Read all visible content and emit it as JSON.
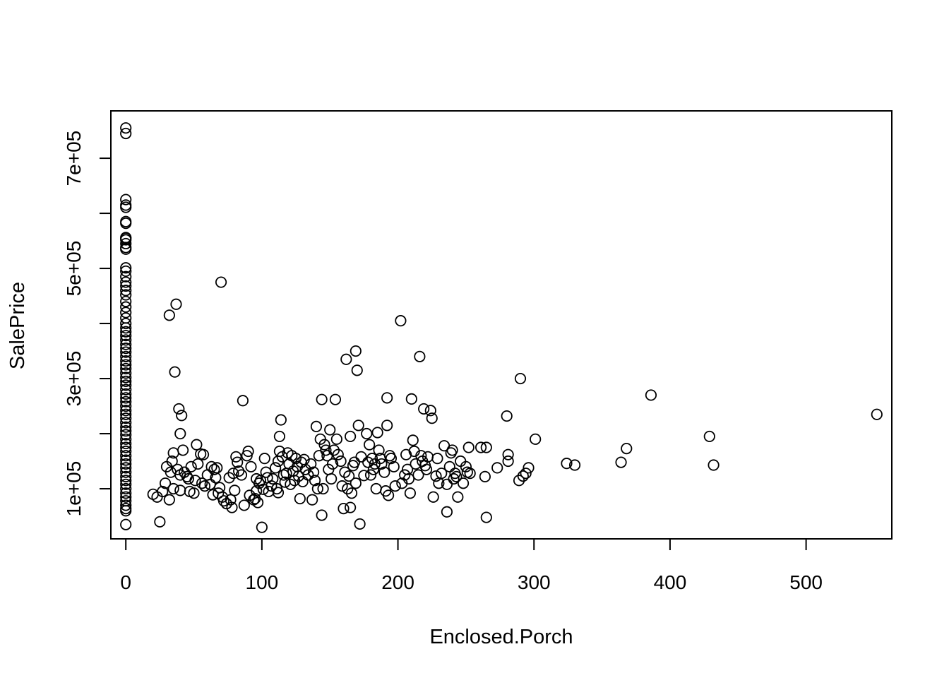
{
  "chart_data": {
    "type": "scatter",
    "title": "",
    "xlabel": "Enclosed.Porch",
    "ylabel": "SalePrice",
    "xlim": [
      -11,
      563
    ],
    "ylim": [
      9000,
      786000
    ],
    "x_ticks": [
      0,
      100,
      200,
      300,
      400,
      500
    ],
    "x_tick_labels": [
      "0",
      "100",
      "200",
      "300",
      "400",
      "500"
    ],
    "y_ticks": [
      100000,
      200000,
      300000,
      400000,
      500000,
      600000,
      700000
    ],
    "y_tick_labels": [
      "1e+05",
      "",
      "3e+05",
      "",
      "5e+05",
      "",
      "7e+05"
    ],
    "grid": false,
    "marker": "open-circle",
    "points": [
      [
        0,
        755000
      ],
      [
        0,
        745000
      ],
      [
        0,
        625000
      ],
      [
        0,
        615000
      ],
      [
        0,
        611000
      ],
      [
        0,
        585000
      ],
      [
        0,
        582000
      ],
      [
        0,
        556000
      ],
      [
        0,
        555000
      ],
      [
        0,
        552000
      ],
      [
        0,
        545000
      ],
      [
        0,
        538000
      ],
      [
        0,
        535000
      ],
      [
        0,
        501000
      ],
      [
        0,
        495000
      ],
      [
        0,
        485000
      ],
      [
        0,
        475000
      ],
      [
        0,
        468000
      ],
      [
        0,
        460000
      ],
      [
        0,
        452000
      ],
      [
        0,
        440000
      ],
      [
        0,
        430000
      ],
      [
        0,
        420000
      ],
      [
        0,
        410000
      ],
      [
        0,
        400000
      ],
      [
        0,
        392000
      ],
      [
        0,
        385000
      ],
      [
        0,
        378000
      ],
      [
        0,
        370000
      ],
      [
        0,
        362000
      ],
      [
        0,
        355000
      ],
      [
        0,
        348000
      ],
      [
        0,
        340000
      ],
      [
        0,
        332000
      ],
      [
        0,
        325000
      ],
      [
        0,
        318000
      ],
      [
        0,
        310000
      ],
      [
        0,
        302000
      ],
      [
        0,
        295000
      ],
      [
        0,
        288000
      ],
      [
        0,
        280000
      ],
      [
        0,
        272000
      ],
      [
        0,
        265000
      ],
      [
        0,
        258000
      ],
      [
        0,
        250000
      ],
      [
        0,
        242000
      ],
      [
        0,
        235000
      ],
      [
        0,
        228000
      ],
      [
        0,
        220000
      ],
      [
        0,
        212000
      ],
      [
        0,
        205000
      ],
      [
        0,
        198000
      ],
      [
        0,
        190000
      ],
      [
        0,
        182000
      ],
      [
        0,
        175000
      ],
      [
        0,
        168000
      ],
      [
        0,
        160000
      ],
      [
        0,
        152000
      ],
      [
        0,
        145000
      ],
      [
        0,
        138000
      ],
      [
        0,
        130000
      ],
      [
        0,
        122000
      ],
      [
        0,
        115000
      ],
      [
        0,
        108000
      ],
      [
        0,
        100000
      ],
      [
        0,
        92000
      ],
      [
        0,
        85000
      ],
      [
        0,
        78000
      ],
      [
        0,
        70000
      ],
      [
        0,
        64000
      ],
      [
        0,
        60000
      ],
      [
        0,
        35000
      ],
      [
        20,
        90000
      ],
      [
        23,
        85000
      ],
      [
        25,
        40000
      ],
      [
        27,
        95000
      ],
      [
        29,
        110000
      ],
      [
        30,
        140000
      ],
      [
        32,
        80000
      ],
      [
        32,
        415000
      ],
      [
        33,
        130000
      ],
      [
        34,
        150000
      ],
      [
        35,
        165000
      ],
      [
        35,
        100000
      ],
      [
        36,
        312000
      ],
      [
        37,
        435000
      ],
      [
        38,
        135000
      ],
      [
        39,
        245000
      ],
      [
        40,
        200000
      ],
      [
        40,
        125000
      ],
      [
        40,
        97000
      ],
      [
        41,
        233000
      ],
      [
        42,
        170000
      ],
      [
        43,
        130000
      ],
      [
        45,
        122000
      ],
      [
        46,
        118000
      ],
      [
        47,
        95000
      ],
      [
        48,
        140000
      ],
      [
        50,
        92000
      ],
      [
        51,
        115000
      ],
      [
        52,
        180000
      ],
      [
        53,
        145000
      ],
      [
        55,
        163000
      ],
      [
        56,
        110000
      ],
      [
        57,
        162000
      ],
      [
        58,
        105000
      ],
      [
        60,
        125000
      ],
      [
        62,
        108000
      ],
      [
        63,
        140000
      ],
      [
        64,
        89000
      ],
      [
        65,
        135000
      ],
      [
        66,
        120000
      ],
      [
        67,
        138000
      ],
      [
        68,
        92000
      ],
      [
        69,
        102000
      ],
      [
        70,
        475000
      ],
      [
        71,
        85000
      ],
      [
        72,
        78000
      ],
      [
        74,
        73000
      ],
      [
        76,
        120000
      ],
      [
        77,
        80000
      ],
      [
        78,
        66000
      ],
      [
        79,
        128000
      ],
      [
        80,
        97000
      ],
      [
        81,
        158000
      ],
      [
        82,
        148000
      ],
      [
        83,
        132000
      ],
      [
        85,
        125000
      ],
      [
        86,
        260000
      ],
      [
        87,
        70000
      ],
      [
        89,
        160000
      ],
      [
        90,
        168000
      ],
      [
        91,
        88000
      ],
      [
        92,
        140000
      ],
      [
        94,
        80000
      ],
      [
        95,
        82000
      ],
      [
        96,
        96000
      ],
      [
        96,
        118000
      ],
      [
        97,
        75000
      ],
      [
        98,
        110000
      ],
      [
        99,
        115000
      ],
      [
        100,
        30000
      ],
      [
        101,
        99000
      ],
      [
        102,
        155000
      ],
      [
        103,
        130000
      ],
      [
        104,
        120000
      ],
      [
        105,
        95000
      ],
      [
        107,
        105000
      ],
      [
        108,
        118000
      ],
      [
        110,
        138000
      ],
      [
        111,
        100000
      ],
      [
        112,
        93000
      ],
      [
        112,
        150000
      ],
      [
        113,
        168000
      ],
      [
        113,
        195000
      ],
      [
        114,
        225000
      ],
      [
        115,
        158000
      ],
      [
        116,
        125000
      ],
      [
        117,
        112000
      ],
      [
        118,
        128000
      ],
      [
        119,
        165000
      ],
      [
        120,
        145000
      ],
      [
        121,
        108000
      ],
      [
        122,
        160000
      ],
      [
        123,
        132000
      ],
      [
        124,
        115000
      ],
      [
        125,
        155000
      ],
      [
        126,
        140000
      ],
      [
        127,
        123000
      ],
      [
        128,
        82000
      ],
      [
        129,
        148000
      ],
      [
        130,
        113000
      ],
      [
        131,
        153000
      ],
      [
        132,
        135000
      ],
      [
        134,
        125000
      ],
      [
        136,
        145000
      ],
      [
        137,
        80000
      ],
      [
        138,
        130000
      ],
      [
        139,
        115000
      ],
      [
        140,
        213000
      ],
      [
        141,
        100000
      ],
      [
        142,
        160000
      ],
      [
        143,
        190000
      ],
      [
        144,
        262000
      ],
      [
        144,
        52000
      ],
      [
        145,
        100000
      ],
      [
        146,
        180000
      ],
      [
        147,
        170000
      ],
      [
        148,
        160000
      ],
      [
        149,
        135000
      ],
      [
        150,
        207000
      ],
      [
        151,
        118000
      ],
      [
        152,
        145000
      ],
      [
        153,
        170000
      ],
      [
        154,
        262000
      ],
      [
        155,
        190000
      ],
      [
        156,
        162000
      ],
      [
        158,
        150000
      ],
      [
        159,
        105000
      ],
      [
        160,
        64000
      ],
      [
        161,
        130000
      ],
      [
        162,
        335000
      ],
      [
        163,
        100000
      ],
      [
        164,
        123000
      ],
      [
        165,
        66000
      ],
      [
        165,
        195000
      ],
      [
        166,
        92000
      ],
      [
        167,
        142000
      ],
      [
        168,
        148000
      ],
      [
        169,
        350000
      ],
      [
        169,
        110000
      ],
      [
        170,
        315000
      ],
      [
        171,
        215000
      ],
      [
        172,
        36000
      ],
      [
        173,
        158000
      ],
      [
        175,
        124000
      ],
      [
        177,
        200000
      ],
      [
        178,
        148000
      ],
      [
        179,
        180000
      ],
      [
        180,
        125000
      ],
      [
        181,
        155000
      ],
      [
        182,
        135000
      ],
      [
        183,
        145000
      ],
      [
        184,
        100000
      ],
      [
        185,
        202000
      ],
      [
        186,
        170000
      ],
      [
        187,
        155000
      ],
      [
        188,
        145000
      ],
      [
        190,
        130000
      ],
      [
        191,
        96000
      ],
      [
        192,
        215000
      ],
      [
        192,
        265000
      ],
      [
        193,
        88000
      ],
      [
        194,
        160000
      ],
      [
        195,
        155000
      ],
      [
        197,
        140000
      ],
      [
        198,
        105000
      ],
      [
        202,
        405000
      ],
      [
        203,
        110000
      ],
      [
        205,
        125000
      ],
      [
        206,
        162000
      ],
      [
        207,
        135000
      ],
      [
        208,
        118000
      ],
      [
        209,
        92000
      ],
      [
        210,
        263000
      ],
      [
        211,
        188000
      ],
      [
        212,
        168000
      ],
      [
        213,
        145000
      ],
      [
        215,
        125000
      ],
      [
        216,
        340000
      ],
      [
        217,
        160000
      ],
      [
        218,
        150000
      ],
      [
        219,
        245000
      ],
      [
        220,
        142000
      ],
      [
        221,
        135000
      ],
      [
        222,
        158000
      ],
      [
        224,
        242000
      ],
      [
        225,
        228000
      ],
      [
        226,
        85000
      ],
      [
        228,
        123000
      ],
      [
        229,
        155000
      ],
      [
        230,
        110000
      ],
      [
        232,
        128000
      ],
      [
        234,
        178000
      ],
      [
        236,
        58000
      ],
      [
        236,
        108000
      ],
      [
        238,
        140000
      ],
      [
        239,
        165000
      ],
      [
        240,
        170000
      ],
      [
        241,
        118000
      ],
      [
        242,
        128000
      ],
      [
        243,
        122000
      ],
      [
        244,
        85000
      ],
      [
        246,
        150000
      ],
      [
        248,
        110000
      ],
      [
        250,
        140000
      ],
      [
        251,
        130000
      ],
      [
        252,
        175000
      ],
      [
        253,
        128000
      ],
      [
        261,
        175000
      ],
      [
        264,
        122000
      ],
      [
        265,
        175000
      ],
      [
        265,
        48000
      ],
      [
        273,
        138000
      ],
      [
        280,
        232000
      ],
      [
        281,
        162000
      ],
      [
        281,
        150000
      ],
      [
        289,
        115000
      ],
      [
        290,
        300000
      ],
      [
        292,
        123000
      ],
      [
        294,
        128000
      ],
      [
        296,
        138000
      ],
      [
        301,
        190000
      ],
      [
        324,
        146000
      ],
      [
        330,
        143000
      ],
      [
        364,
        148000
      ],
      [
        368,
        173000
      ],
      [
        386,
        270000
      ],
      [
        429,
        195000
      ],
      [
        432,
        143000
      ],
      [
        552,
        235000
      ]
    ]
  }
}
